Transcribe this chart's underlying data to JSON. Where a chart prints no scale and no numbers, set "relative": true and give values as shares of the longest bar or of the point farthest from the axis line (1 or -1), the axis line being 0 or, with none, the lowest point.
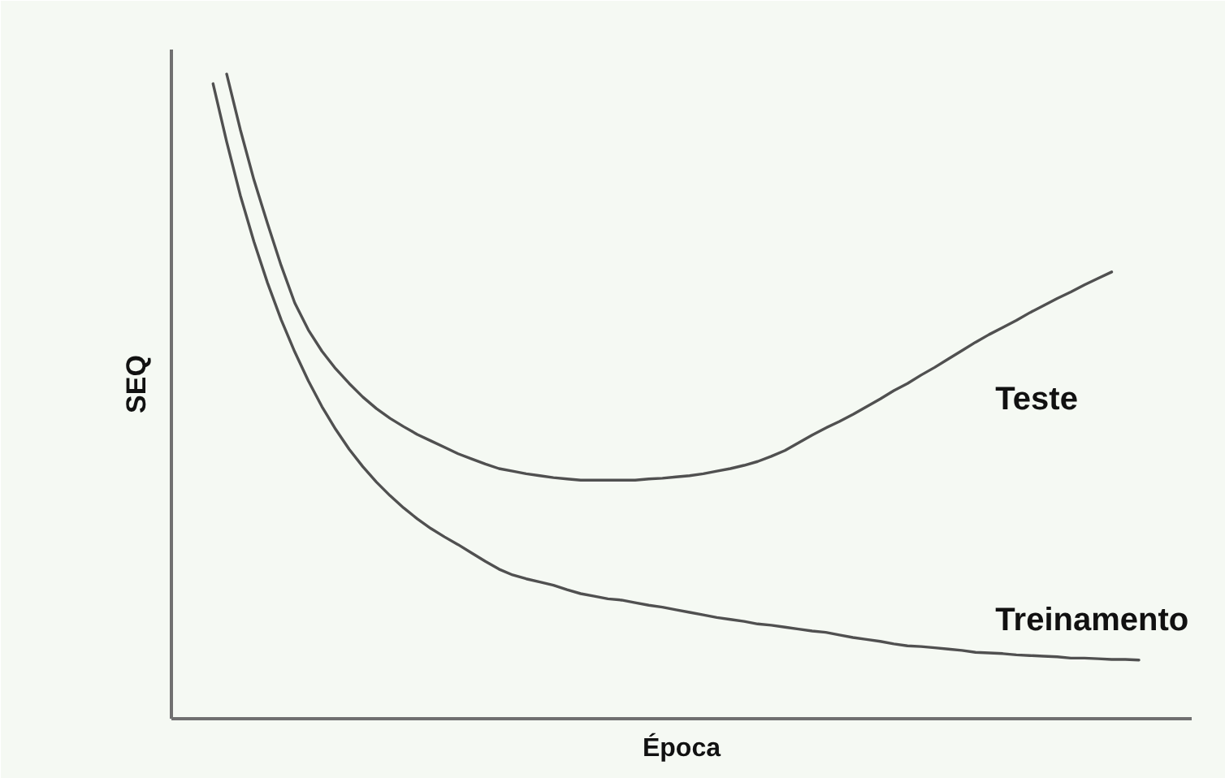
{
  "chart_data": {
    "type": "line",
    "relative": true,
    "xlabel": "Época",
    "ylabel": "SEQ",
    "line_style": "solid",
    "categories": [
      null,
      null,
      null,
      null,
      null,
      null,
      null,
      null,
      null,
      null,
      null,
      null,
      null,
      null,
      null,
      null,
      null,
      null,
      null,
      null,
      null,
      null,
      null,
      null,
      null,
      null,
      null,
      null,
      null,
      null,
      null,
      null,
      null,
      null,
      null,
      null,
      null,
      null,
      null,
      null,
      null,
      null,
      null,
      null,
      null,
      null,
      null,
      null,
      null,
      null,
      null,
      null,
      null,
      null,
      null,
      null,
      null,
      null,
      null,
      null,
      null,
      null,
      null,
      null,
      null,
      null,
      null,
      null,
      null
    ],
    "series": [
      {
        "name": "Teste",
        "color": "#505050",
        "values": [
          null,
          1.0,
          0.914,
          0.836,
          0.768,
          0.703,
          0.645,
          0.603,
          0.57,
          0.543,
          0.52,
          0.499,
          0.481,
          0.466,
          0.453,
          0.441,
          0.431,
          0.421,
          0.411,
          0.403,
          0.395,
          0.388,
          0.384,
          0.38,
          0.377,
          0.374,
          0.372,
          0.37,
          0.37,
          0.37,
          0.37,
          0.37,
          0.372,
          0.373,
          0.375,
          0.377,
          0.38,
          0.384,
          0.388,
          0.393,
          0.399,
          0.407,
          0.416,
          0.428,
          0.44,
          0.451,
          0.461,
          0.472,
          0.484,
          0.496,
          0.509,
          0.52,
          0.533,
          0.545,
          0.558,
          0.571,
          0.584,
          0.596,
          0.607,
          0.618,
          0.63,
          0.641,
          0.652,
          0.662,
          0.673,
          0.683,
          0.693,
          null,
          null
        ]
      },
      {
        "name": "Treinamento",
        "color": "#505050",
        "values": [
          0.985,
          0.895,
          0.812,
          0.74,
          0.676,
          0.619,
          0.569,
          0.524,
          0.484,
          0.449,
          0.418,
          0.391,
          0.367,
          0.346,
          0.327,
          0.31,
          0.295,
          0.282,
          0.27,
          0.257,
          0.244,
          0.232,
          0.223,
          0.217,
          0.212,
          0.207,
          0.2,
          0.194,
          0.19,
          0.186,
          0.184,
          0.18,
          0.176,
          0.173,
          0.169,
          0.165,
          0.161,
          0.157,
          0.154,
          0.151,
          0.147,
          0.145,
          0.142,
          0.139,
          0.136,
          0.134,
          0.13,
          0.126,
          0.123,
          0.12,
          0.116,
          0.113,
          0.112,
          0.11,
          0.108,
          0.106,
          0.103,
          0.102,
          0.101,
          0.099,
          0.098,
          0.097,
          0.096,
          0.094,
          0.094,
          0.093,
          0.092,
          0.092,
          0.091
        ]
      }
    ]
  }
}
